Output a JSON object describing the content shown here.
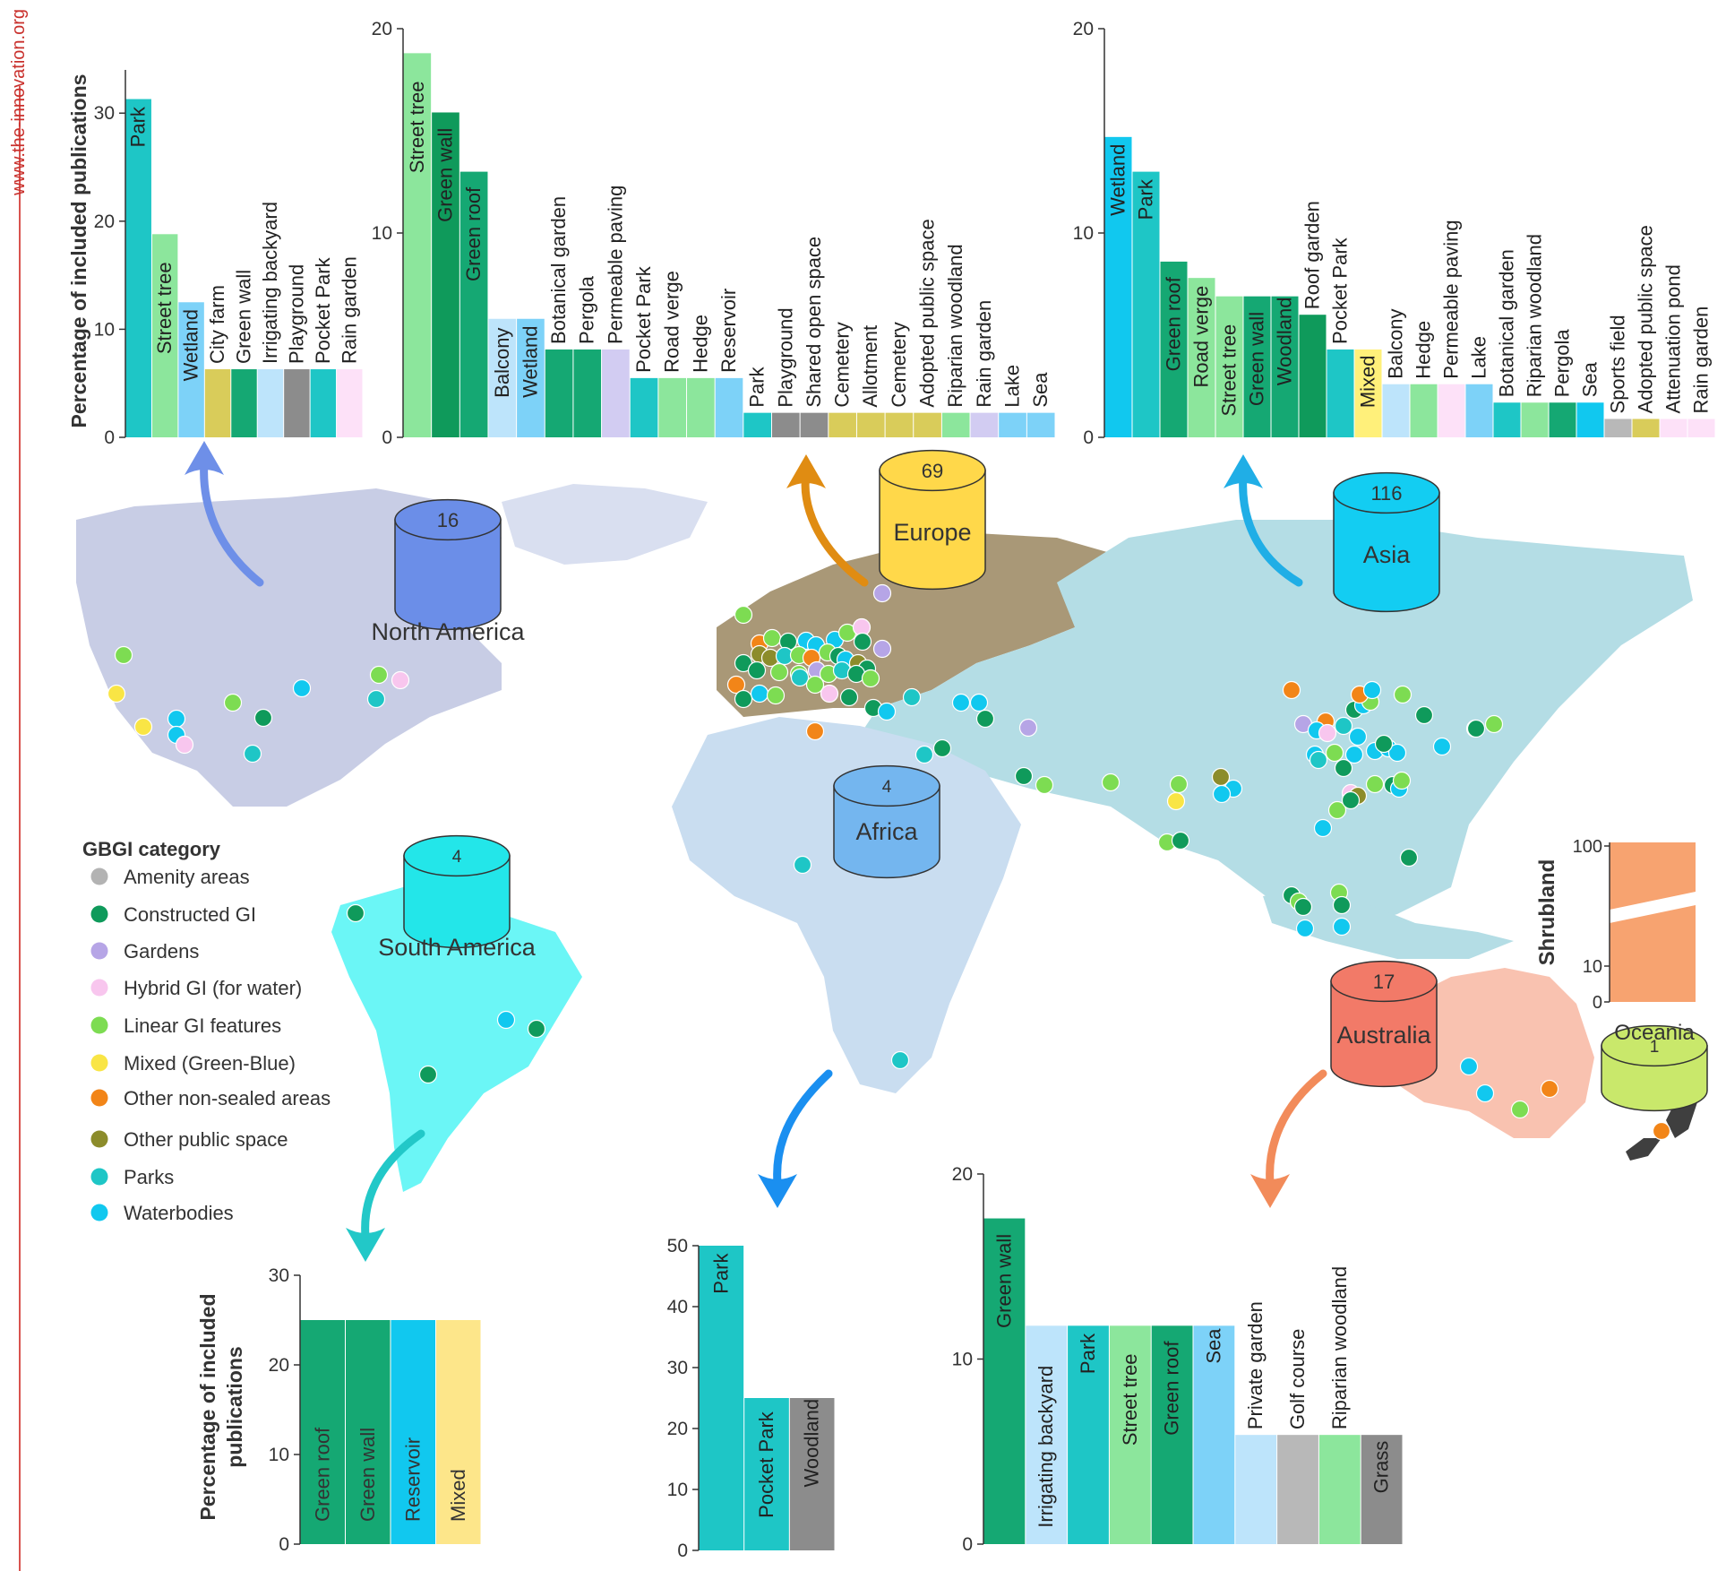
{
  "site": "www.the-innovation.org",
  "colors": {
    "amenity": "#b3b3b3",
    "constructed": "#0f9a5b",
    "gardens": "#b6a5e6",
    "hybrid": "#f8c6ee",
    "linear": "#7ddc52",
    "mixed": "#f9e545",
    "other_ns": "#f28518",
    "other_ps": "#8c8c2b",
    "parks": "#1ec6c6",
    "water": "#11c8ef",
    "lightblue": "#7dd2f8",
    "palegreen": "#8ce69c",
    "gbgreen": "#15a873",
    "paleblue": "#bde4fb",
    "lavender": "#d2ccf2",
    "khaki": "#d9cc5a",
    "grey": "#8c8c8c",
    "lightgrey": "#b8b8b8",
    "pink": "#fde1f8",
    "yellow": "#fff07a",
    "orange_bar": "#f7a370"
  },
  "legend": {
    "title": "GBGI category",
    "items": [
      {
        "label": "Amenity areas",
        "color": "#b3b3b3"
      },
      {
        "label": "Constructed GI",
        "color": "#0f9a5b"
      },
      {
        "label": "Gardens",
        "color": "#b6a5e6"
      },
      {
        "label": "Hybrid GI (for water)",
        "color": "#f8c6ee"
      },
      {
        "label": "Linear GI features",
        "color": "#7ddc52"
      },
      {
        "label": "Mixed (Green-Blue)",
        "color": "#f9e545"
      },
      {
        "label": "Other non-sealed areas",
        "color": "#f28518"
      },
      {
        "label": "Other public space",
        "color": "#8c8c2b"
      },
      {
        "label": "Parks",
        "color": "#1ec6c6"
      },
      {
        "label": "Waterbodies",
        "color": "#11c8ef"
      }
    ]
  },
  "regions": {
    "north_america": {
      "label": "North America",
      "count": "16",
      "color": "#6b8ee8"
    },
    "europe": {
      "label": "Europe",
      "count": "69",
      "color": "#ffd84a"
    },
    "asia": {
      "label": "Asia",
      "count": "116",
      "color": "#13cdf2"
    },
    "africa": {
      "label": "Africa",
      "count": "4",
      "color": "#74b6ef"
    },
    "south_america": {
      "label": "South America",
      "count": "4",
      "color": "#23e6e9"
    },
    "australia": {
      "label": "Australia",
      "count": "17",
      "color": "#f27a68"
    },
    "oceania": {
      "label": "Oceania",
      "count": "1",
      "color": "#c9e86b"
    }
  },
  "chart_data": [
    {
      "id": "north_america",
      "type": "bar",
      "ylabel": "Percentage of included publications",
      "ylim": [
        0,
        34
      ],
      "yticks": [
        0,
        10,
        20,
        30
      ],
      "categories": [
        "Park",
        "Street tree",
        "Wetland",
        "City farm",
        "Green wall",
        "Irrigating backyard",
        "Playground",
        "Pocket Park",
        "Rain garden"
      ],
      "values": [
        31.3,
        18.8,
        12.5,
        6.3,
        6.3,
        6.3,
        6.3,
        6.3,
        6.3
      ],
      "colors": [
        "#1ec6c6",
        "#8ce69c",
        "#7dd2f8",
        "#d9cc5a",
        "#15a873",
        "#bde4fb",
        "#8c8c8c",
        "#1ec6c6",
        "#fde1f8"
      ]
    },
    {
      "id": "europe",
      "type": "bar",
      "ylabel": "",
      "ylim": [
        0,
        20
      ],
      "yticks": [
        0,
        10,
        20
      ],
      "categories": [
        "Street tree",
        "Green wall",
        "Green roof",
        "Balcony",
        "Wetland",
        "Botanical garden",
        "Pergola",
        "Permeable paving",
        "Pocket Park",
        "Road verge",
        "Hedge",
        "Reservoir",
        "Park",
        "Playground",
        "Shared open space",
        "Cemetery",
        "Allotment",
        "Cemetery",
        "Adopted public space",
        "Riparian woodland",
        "Rain garden",
        "Lake",
        "Sea"
      ],
      "values": [
        18.8,
        15.9,
        13.0,
        5.8,
        5.8,
        4.3,
        4.3,
        4.3,
        2.9,
        2.9,
        2.9,
        2.9,
        1.2,
        1.2,
        1.2,
        1.2,
        1.2,
        1.2,
        1.2,
        1.2,
        1.2,
        1.2,
        1.2
      ],
      "colors": [
        "#8ce69c",
        "#0f9a5b",
        "#15a873",
        "#bde4fb",
        "#7dd2f8",
        "#15a873",
        "#15a873",
        "#d2ccf2",
        "#1ec6c6",
        "#8ce69c",
        "#8ce69c",
        "#7dd2f8",
        "#1ec6c6",
        "#8c8c8c",
        "#8c8c8c",
        "#d9cc5a",
        "#d9cc5a",
        "#d9cc5a",
        "#d9cc5a",
        "#8ce69c",
        "#d2ccf2",
        "#7dd2f8",
        "#7dd2f8"
      ]
    },
    {
      "id": "asia",
      "type": "bar",
      "ylabel": "",
      "ylim": [
        0,
        20
      ],
      "yticks": [
        0,
        10,
        20
      ],
      "categories": [
        "Wetland",
        "Park",
        "Green roof",
        "Road verge",
        "Street tree",
        "Green wall",
        "Woodland",
        "Roof garden",
        "Pocket Park",
        "Mixed",
        "Balcony",
        "Hedge",
        "Permeable paving",
        "Lake",
        "Botanical garden",
        "Riparian woodland",
        "Pergola",
        "Sea",
        "Sports field",
        "Adopted public space",
        "Attenuation pond",
        "Rain garden"
      ],
      "values": [
        14.7,
        13.0,
        8.6,
        7.8,
        6.9,
        6.9,
        6.9,
        6.0,
        4.3,
        4.3,
        2.6,
        2.6,
        2.6,
        2.6,
        1.7,
        1.7,
        1.7,
        1.7,
        0.9,
        0.9,
        0.9,
        0.9
      ],
      "colors": [
        "#11c8ef",
        "#1ec6c6",
        "#15a873",
        "#8ce69c",
        "#8ce69c",
        "#15a873",
        "#15a873",
        "#0f9a5b",
        "#1ec6c6",
        "#fff07a",
        "#bde4fb",
        "#8ce69c",
        "#fde1f8",
        "#7dd2f8",
        "#1ec6c6",
        "#8ce69c",
        "#15a873",
        "#11c8ef",
        "#b8b8b8",
        "#d9cc5a",
        "#fde1f8",
        "#fde1f8"
      ]
    },
    {
      "id": "south_america",
      "type": "bar",
      "ylabel": "Percentage of included publications",
      "ylim": [
        0,
        30
      ],
      "yticks": [
        0,
        10,
        20,
        30
      ],
      "categories": [
        "Green roof",
        "Green wall",
        "Reservoir",
        "Mixed"
      ],
      "values": [
        25,
        25,
        25,
        25
      ],
      "colors": [
        "#15a873",
        "#15a873",
        "#11c8ef",
        "#fde68a"
      ]
    },
    {
      "id": "africa",
      "type": "bar",
      "ylabel": "",
      "ylim": [
        0,
        50
      ],
      "yticks": [
        0,
        10,
        20,
        30,
        40,
        50
      ],
      "categories": [
        "Park",
        "Pocket Park",
        "Woodland"
      ],
      "values": [
        50,
        25,
        25
      ],
      "colors": [
        "#1ec6c6",
        "#1ec6c6",
        "#8c8c8c"
      ]
    },
    {
      "id": "australia",
      "type": "bar",
      "ylabel": "",
      "ylim": [
        0,
        20
      ],
      "yticks": [
        0,
        10,
        20
      ],
      "categories": [
        "Green wall",
        "Irrigating backyard",
        "Park",
        "Street tree",
        "Green roof",
        "Sea",
        "Private garden",
        "Golf course",
        "Riparian woodland",
        "Grass"
      ],
      "values": [
        17.6,
        11.8,
        11.8,
        11.8,
        11.8,
        11.8,
        5.9,
        5.9,
        5.9,
        5.9
      ],
      "colors": [
        "#15a873",
        "#bde4fb",
        "#1ec6c6",
        "#8ce69c",
        "#15a873",
        "#7dd2f8",
        "#bde4fb",
        "#b8b8b8",
        "#8ce69c",
        "#8c8c8c"
      ]
    },
    {
      "id": "oceania",
      "type": "bar",
      "ylabel": "",
      "ylim": [
        0,
        100
      ],
      "yticks": [
        0,
        10,
        100
      ],
      "categories": [
        "Shrubland"
      ],
      "values": [
        100
      ],
      "colors": [
        "#f7a370"
      ]
    }
  ]
}
